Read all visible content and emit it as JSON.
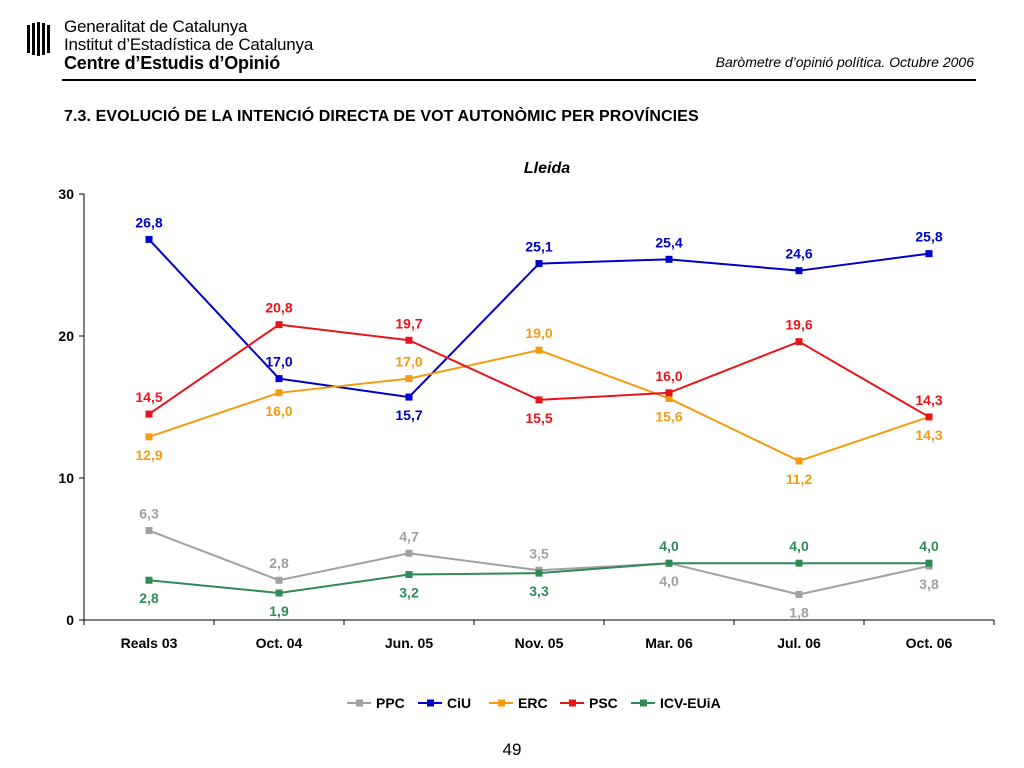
{
  "header": {
    "org_line1": "Generalitat de Catalunya",
    "org_line2": "Institut d’Estadística de Catalunya",
    "org_line3": "Centre d’Estudis d’Opinió",
    "note": "Baròmetre d’opinió política. Octubre 2006"
  },
  "section_title": "7.3. EVOLUCIÓ DE LA INTENCIÓ DIRECTA DE VOT AUTONÒMIC PER PROVÍNCIES",
  "page_number": "49",
  "icons": {
    "logo": "catalonia-stripes-logo"
  },
  "chart_data": {
    "type": "line",
    "title": "Lleida",
    "xlabel": "",
    "ylabel": "",
    "ylim": [
      0,
      30
    ],
    "yticks": [
      "0",
      "10",
      "20",
      "30"
    ],
    "grid": false,
    "legend_position": "bottom",
    "categories": [
      "Reals 03",
      "Oct. 04",
      "Jun. 05",
      "Nov. 05",
      "Mar. 06",
      "Jul. 06",
      "Oct. 06"
    ],
    "series": [
      {
        "name": "PPC",
        "color": "#A0A0A0",
        "values": [
          6.3,
          2.8,
          4.7,
          3.5,
          4.0,
          1.8,
          3.8
        ],
        "labels": [
          "6,3",
          "2,8",
          "4,7",
          "3,5",
          "4,0",
          "1,8",
          "3,8"
        ]
      },
      {
        "name": "CiU",
        "color": "#0000CC",
        "values": [
          26.8,
          17.0,
          15.7,
          25.1,
          25.4,
          24.6,
          25.8
        ],
        "labels": [
          "26,8",
          "17,0",
          "15,7",
          "25,1",
          "25,4",
          "24,6",
          "25,8"
        ]
      },
      {
        "name": "ERC",
        "color": "#F39C12",
        "values": [
          12.9,
          16.0,
          17.0,
          19.0,
          15.6,
          11.2,
          14.3
        ],
        "labels": [
          "12,9",
          "16,0",
          "17,0",
          "19,0",
          "15,6",
          "11,2",
          "14,3"
        ]
      },
      {
        "name": "PSC",
        "color": "#E8141C",
        "values": [
          14.5,
          20.8,
          19.7,
          15.5,
          16.0,
          19.6,
          14.3
        ],
        "labels": [
          "14,5",
          "20,8",
          "19,7",
          "15,5",
          "16,0",
          "19,6",
          "14,3"
        ]
      },
      {
        "name": "ICV-EUiA",
        "color": "#2E8B57",
        "values": [
          2.8,
          1.9,
          3.2,
          3.3,
          4.0,
          4.0,
          4.0
        ],
        "labels": [
          "2,8",
          "1,9",
          "3,2",
          "3,3",
          "4,0",
          "4,0",
          "4,0"
        ]
      }
    ]
  }
}
